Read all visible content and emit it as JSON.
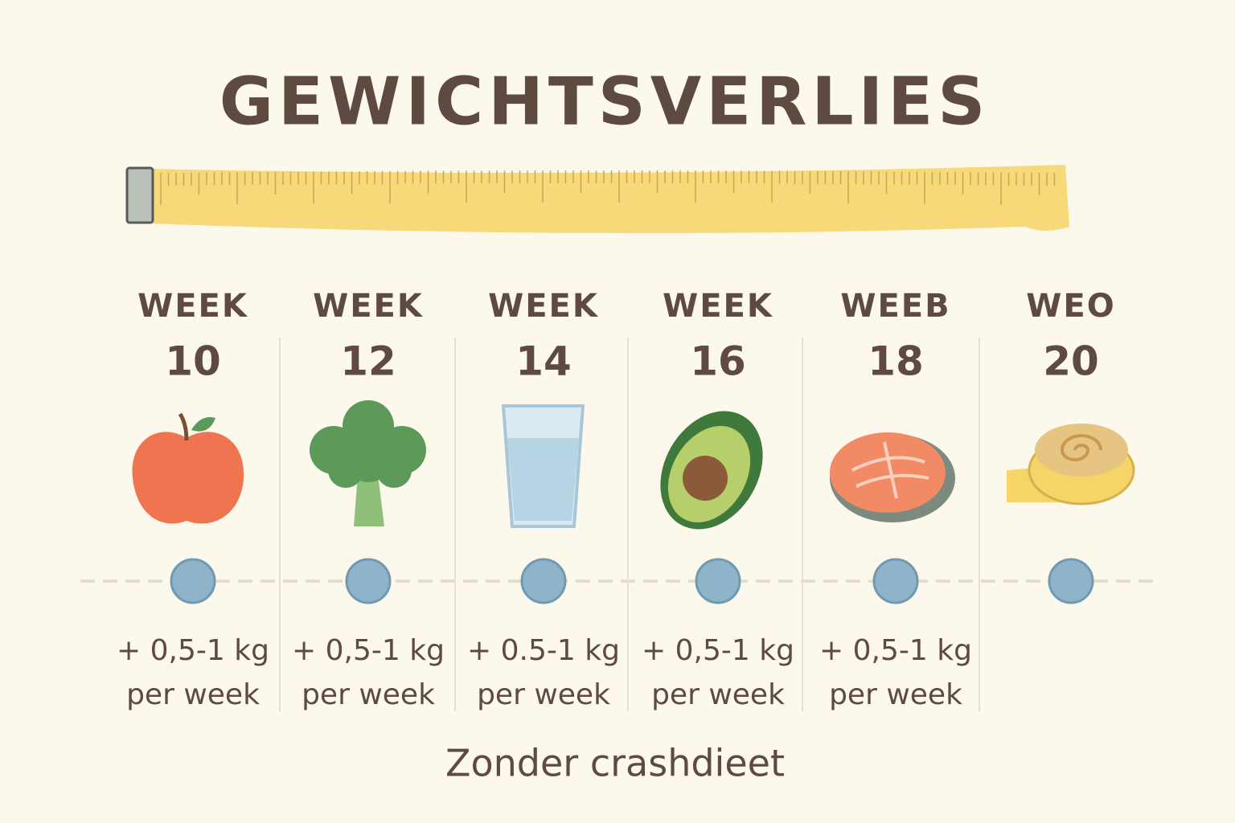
{
  "header": {
    "title": "GEWICHTSVERLIES"
  },
  "columns": [
    {
      "label": "WEEK",
      "number": "10",
      "note": [
        "+ 0,5-1 kg",
        "per week"
      ]
    },
    {
      "label": "WEEK",
      "number": "12",
      "note": [
        "+ 0,5-1 kg",
        "per week"
      ]
    },
    {
      "label": "WEEK",
      "number": "14",
      "note": [
        "+ 0.5-1 kg",
        "per week"
      ]
    },
    {
      "label": "WEEK",
      "number": "16",
      "note": [
        "+ 0,5-1 kg",
        "per week"
      ]
    },
    {
      "label": "WEEB",
      "number": "18",
      "note": [
        "+ 0,5-1 kg",
        "per week"
      ]
    },
    {
      "label": "WEO",
      "number": "20"
    }
  ],
  "footer": {
    "text": "Zonder crashdieet"
  }
}
